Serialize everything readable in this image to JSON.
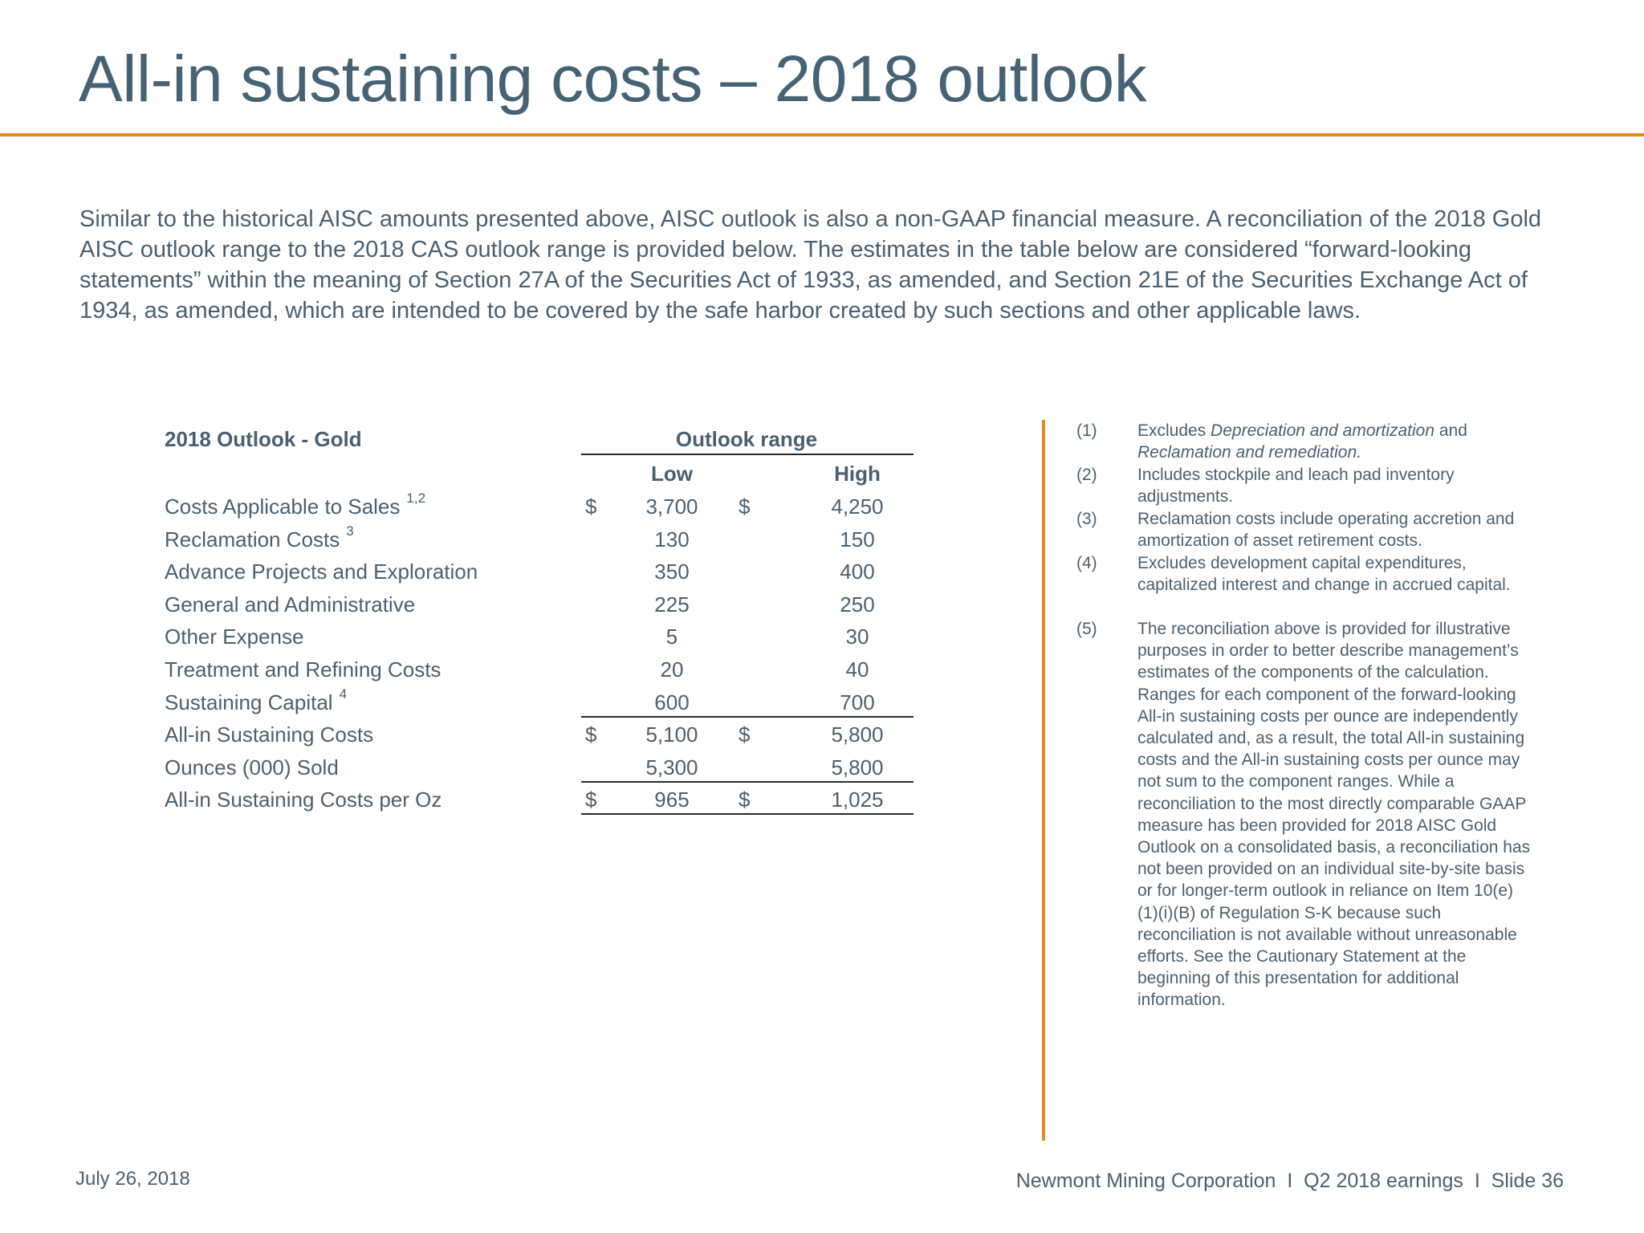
{
  "title": "All-in sustaining costs – 2018 outlook",
  "intro": "Similar to the historical AISC amounts presented above, AISC outlook is also a non-GAAP financial measure.  A reconciliation of the 2018 Gold AISC outlook range to the 2018 CAS outlook range is provided below.  The estimates in the table below are considered “forward-looking statements” within the meaning of Section 27A of the Securities Act of 1933, as amended, and Section 21E of the Securities Exchange Act of 1934, as amended, which are intended to be covered by the safe harbor created by such sections and other applicable laws.",
  "table": {
    "heading": "2018 Outlook - Gold",
    "range_heading": "Outlook range",
    "col_low": "Low",
    "col_high": "High",
    "currency": "$",
    "rows": [
      {
        "label": "Costs Applicable to Sales",
        "sup": "1,2",
        "low": "3,700",
        "high": "4,250"
      },
      {
        "label": "Reclamation Costs",
        "sup": "3",
        "low": "130",
        "high": "150"
      },
      {
        "label": "Advance Projects and Exploration",
        "sup": "",
        "low": "350",
        "high": "400"
      },
      {
        "label": "General and Administrative",
        "sup": "",
        "low": "225",
        "high": "250"
      },
      {
        "label": "Other Expense",
        "sup": "",
        "low": "5",
        "high": "30"
      },
      {
        "label": "Treatment and Refining Costs",
        "sup": "",
        "low": "20",
        "high": "40"
      },
      {
        "label": "Sustaining Capital",
        "sup": "4",
        "low": "600",
        "high": "700"
      },
      {
        "label": "All-in Sustaining Costs",
        "sup": "",
        "low": "5,100",
        "high": "5,800"
      },
      {
        "label": "Ounces (000) Sold",
        "sup": "",
        "low": "5,300",
        "high": "5,800"
      },
      {
        "label": "All-in Sustaining Costs per Oz",
        "sup": "",
        "low": "965",
        "high": "1,025"
      }
    ]
  },
  "footnotes": [
    {
      "num": "(1)",
      "text_pre": "Excludes ",
      "italic1": "Depreciation and amortization",
      "text_mid": " and ",
      "italic2": "Reclamation and remediation.",
      "text": ""
    },
    {
      "num": "(2)",
      "text": "Includes stockpile and leach pad inventory adjustments."
    },
    {
      "num": "(3)",
      "text": "Reclamation costs include operating accretion and amortization of asset retirement costs."
    },
    {
      "num": "(4)",
      "text": "Excludes development capital expenditures, capitalized interest and change in accrued capital."
    },
    {
      "num": "(5)",
      "text": "The reconciliation above is provided for illustrative purposes in order to better describe management’s estimates of the components of the calculation. Ranges for each component of the forward-looking All-in sustaining costs per ounce are independently calculated and, as a result, the total All-in sustaining costs and the All-in sustaining costs per ounce may not sum to the component ranges. While a reconciliation to the most directly comparable GAAP measure has been provided for 2018 AISC Gold Outlook on a consolidated basis, a reconciliation has not been provided on an individual site-by-site basis or for longer-term outlook in reliance on Item 10(e)(1)(i)(B) of Regulation S-K because such reconciliation is not available without unreasonable efforts. See the Cautionary Statement at the beginning of this presentation for additional information."
    }
  ],
  "footer": {
    "date": "July 26, 2018",
    "right": "Newmont Mining Corporation  I  Q2 2018 earnings  I  Slide 36"
  },
  "colors": {
    "title": "#456375",
    "accent": "#e08a1e",
    "text": "#4a6070"
  }
}
